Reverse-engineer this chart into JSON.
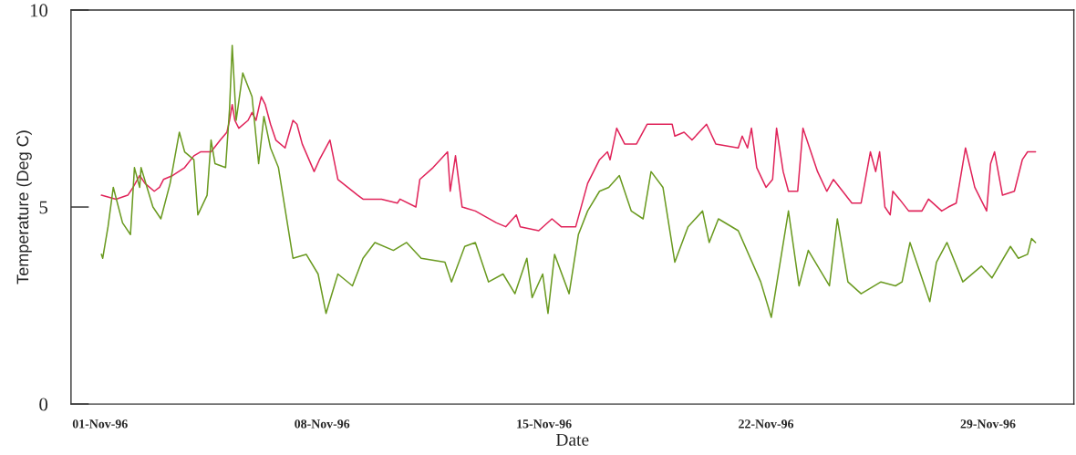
{
  "chart_data": {
    "type": "line",
    "xlabel": "Date",
    "ylabel": "Temperature (Deg C)",
    "xlim": [
      "1996-10-31T02:00",
      "1996-12-01T17:00"
    ],
    "xticks": [
      {
        "value": "1996-11-01",
        "label": "01-Nov-96"
      },
      {
        "value": "1996-11-08",
        "label": "08-Nov-96"
      },
      {
        "value": "1996-11-15",
        "label": "15-Nov-96"
      },
      {
        "value": "1996-11-22",
        "label": "22-Nov-96"
      },
      {
        "value": "1996-11-29",
        "label": "29-Nov-96"
      }
    ],
    "ylim": [
      0,
      10
    ],
    "yticks": [
      0,
      5,
      10
    ],
    "grid": false,
    "marker": "none",
    "line_style": "solid",
    "series": [
      {
        "color": "#e0245a",
        "x": [
          "1996-11-01T01:00",
          "1996-11-01T12:00",
          "1996-11-01T21:00",
          "1996-11-02T01:00",
          "1996-11-02T06:00",
          "1996-11-02T10:00",
          "1996-11-02T17:00",
          "1996-11-02T21:00",
          "1996-11-03T00:00",
          "1996-11-03T07:00",
          "1996-11-03T16:00",
          "1996-11-03T23:00",
          "1996-11-04T04:00",
          "1996-11-04T12:00",
          "1996-11-04T19:00",
          "1996-11-05T00:00",
          "1996-11-05T02:00",
          "1996-11-05T04:00",
          "1996-11-05T06:00",
          "1996-11-05T09:00",
          "1996-11-05T16:00",
          "1996-11-05T19:00",
          "1996-11-05T22:00",
          "1996-11-06T02:00",
          "1996-11-06T05:00",
          "1996-11-06T09:00",
          "1996-11-06T13:00",
          "1996-11-06T20:00",
          "1996-11-07T02:00",
          "1996-11-07T05:00",
          "1996-11-07T09:00",
          "1996-11-07T18:00",
          "1996-11-07T22:00",
          "1996-11-08T06:00",
          "1996-11-08T12:00",
          "1996-11-09T03:00",
          "1996-11-09T07:00",
          "1996-11-09T21:00",
          "1996-11-10T09:00",
          "1996-11-10T11:00",
          "1996-11-10T23:00",
          "1996-11-11T02:00",
          "1996-11-11T12:00",
          "1996-11-11T23:00",
          "1996-11-12T01:00",
          "1996-11-12T05:00",
          "1996-11-12T10:00",
          "1996-11-12T20:00",
          "1996-11-13T12:00",
          "1996-11-13T19:00",
          "1996-11-14T03:00",
          "1996-11-14T06:00",
          "1996-11-14T20:00",
          "1996-11-15T06:00",
          "1996-11-15T13:00",
          "1996-11-16T00:00",
          "1996-11-16T09:00",
          "1996-11-16T18:00",
          "1996-11-17T00:00",
          "1996-11-17T02:00",
          "1996-11-17T07:00",
          "1996-11-17T13:00",
          "1996-11-17T22:00",
          "1996-11-18T06:00",
          "1996-11-19T01:00",
          "1996-11-19T03:00",
          "1996-11-19T10:00",
          "1996-11-19T16:00",
          "1996-11-20T03:00",
          "1996-11-20T10:00",
          "1996-11-21T03:00",
          "1996-11-21T06:00",
          "1996-11-21T10:00",
          "1996-11-21T13:00",
          "1996-11-21T17:00",
          "1996-11-22T00:00",
          "1996-11-22T05:00",
          "1996-11-22T08:00",
          "1996-11-22T13:00",
          "1996-11-22T17:00",
          "1996-11-23T00:00",
          "1996-11-23T04:00",
          "1996-11-23T08:00",
          "1996-11-23T15:00",
          "1996-11-23T22:00",
          "1996-11-24T03:00",
          "1996-11-24T10:00",
          "1996-11-24T17:00",
          "1996-11-25T00:00",
          "1996-11-25T07:00",
          "1996-11-25T11:00",
          "1996-11-25T14:00",
          "1996-11-25T18:00",
          "1996-11-25T22:00",
          "1996-11-26T00:00",
          "1996-11-26T05:00",
          "1996-11-26T12:00",
          "1996-11-26T22:00",
          "1996-11-27T03:00",
          "1996-11-27T13:00",
          "1996-11-27T18:00",
          "1996-11-28T00:00",
          "1996-11-28T07:00",
          "1996-11-28T14:00",
          "1996-11-28T23:00",
          "1996-11-29T02:00",
          "1996-11-29T05:00",
          "1996-11-29T11:00",
          "1996-11-29T20:00",
          "1996-11-30T02:00",
          "1996-11-30T06:00",
          "1996-11-30T12:00"
        ],
        "values": [
          5.3,
          5.2,
          5.3,
          5.5,
          5.8,
          5.6,
          5.4,
          5.5,
          5.7,
          5.8,
          6.0,
          6.3,
          6.4,
          6.4,
          6.7,
          6.9,
          7.2,
          7.6,
          7.2,
          7.0,
          7.2,
          7.4,
          7.2,
          7.8,
          7.6,
          7.1,
          6.7,
          6.5,
          7.2,
          7.1,
          6.6,
          5.9,
          6.2,
          6.7,
          5.7,
          5.3,
          5.2,
          5.2,
          5.1,
          5.2,
          5.0,
          5.7,
          6.0,
          6.4,
          5.4,
          6.3,
          5.0,
          4.9,
          4.6,
          4.5,
          4.8,
          4.5,
          4.4,
          4.7,
          4.5,
          4.5,
          5.6,
          6.2,
          6.4,
          6.2,
          7.0,
          6.6,
          6.6,
          7.1,
          7.1,
          6.8,
          6.9,
          6.7,
          7.1,
          6.6,
          6.5,
          6.8,
          6.5,
          7.0,
          6.0,
          5.5,
          5.7,
          7.0,
          5.9,
          5.4,
          5.4,
          7.0,
          6.6,
          5.9,
          5.4,
          5.7,
          5.4,
          5.1,
          5.1,
          6.4,
          5.9,
          6.4,
          5.0,
          4.8,
          5.4,
          5.2,
          4.9,
          4.9,
          5.2,
          4.9,
          5.0,
          5.1,
          6.5,
          5.5,
          4.9,
          6.1,
          6.4,
          5.3,
          5.4,
          6.2,
          6.4,
          6.4
        ]
      },
      {
        "color": "#6a9a20",
        "x": [
          "1996-11-01T01:00",
          "1996-11-01T02:00",
          "1996-11-01T06:00",
          "1996-11-01T10:00",
          "1996-11-01T17:00",
          "1996-11-01T23:00",
          "1996-11-02T02:00",
          "1996-11-02T06:00",
          "1996-11-02T07:00",
          "1996-11-02T16:00",
          "1996-11-02T22:00",
          "1996-11-03T05:00",
          "1996-11-03T12:00",
          "1996-11-03T16:00",
          "1996-11-03T23:00",
          "1996-11-04T02:00",
          "1996-11-04T09:00",
          "1996-11-04T12:00",
          "1996-11-04T15:00",
          "1996-11-04T23:00",
          "1996-11-05T02:00",
          "1996-11-05T04:00",
          "1996-11-05T07:00",
          "1996-11-05T12:00",
          "1996-11-05T19:00",
          "1996-11-06T00:00",
          "1996-11-06T04:00",
          "1996-11-06T09:00",
          "1996-11-06T15:00",
          "1996-11-07T02:00",
          "1996-11-07T12:00",
          "1996-11-07T21:00",
          "1996-11-08T03:00",
          "1996-11-08T12:00",
          "1996-11-08T23:00",
          "1996-11-09T07:00",
          "1996-11-09T16:00",
          "1996-11-10T06:00",
          "1996-11-10T16:00",
          "1996-11-11T03:00",
          "1996-11-11T21:00",
          "1996-11-12T02:00",
          "1996-11-12T12:00",
          "1996-11-12T20:00",
          "1996-11-13T06:00",
          "1996-11-13T17:00",
          "1996-11-14T02:00",
          "1996-11-14T11:00",
          "1996-11-14T15:00",
          "1996-11-14T23:00",
          "1996-11-15T03:00",
          "1996-11-15T08:00",
          "1996-11-15T19:00",
          "1996-11-16T02:00",
          "1996-11-16T09:00",
          "1996-11-16T18:00",
          "1996-11-17T01:00",
          "1996-11-17T09:00",
          "1996-11-17T18:00",
          "1996-11-18T03:00",
          "1996-11-18T09:00",
          "1996-11-18T18:00",
          "1996-11-19T03:00",
          "1996-11-19T13:00",
          "1996-11-20T00:00",
          "1996-11-20T05:00",
          "1996-11-20T12:00",
          "1996-11-21T03:00",
          "1996-11-21T20:00",
          "1996-11-22T04:00",
          "1996-11-22T17:00",
          "1996-11-23T01:00",
          "1996-11-23T08:00",
          "1996-11-24T00:00",
          "1996-11-24T06:00",
          "1996-11-24T14:00",
          "1996-11-25T00:00",
          "1996-11-25T15:00",
          "1996-11-26T02:00",
          "1996-11-26T07:00",
          "1996-11-26T13:00",
          "1996-11-26T20:00",
          "1996-11-27T04:00",
          "1996-11-27T09:00",
          "1996-11-27T17:00",
          "1996-11-28T05:00",
          "1996-11-28T19:00",
          "1996-11-29T03:00",
          "1996-11-29T17:00",
          "1996-11-29T23:00",
          "1996-11-30T06:00",
          "1996-11-30T09:00",
          "1996-11-30T12:00"
        ],
        "values": [
          3.8,
          3.7,
          4.5,
          5.5,
          4.6,
          4.3,
          6.0,
          5.5,
          6.0,
          5.0,
          4.7,
          5.6,
          6.9,
          6.4,
          6.2,
          4.8,
          5.3,
          6.7,
          6.1,
          6.0,
          7.5,
          9.1,
          7.2,
          8.4,
          7.8,
          6.1,
          7.3,
          6.5,
          6.0,
          3.7,
          3.8,
          3.3,
          2.3,
          3.3,
          3.0,
          3.7,
          4.1,
          3.9,
          4.1,
          3.7,
          3.6,
          3.1,
          4.0,
          4.1,
          3.1,
          3.3,
          2.8,
          3.7,
          2.7,
          3.3,
          2.3,
          3.8,
          2.8,
          4.3,
          4.9,
          5.4,
          5.5,
          5.8,
          4.9,
          4.7,
          5.9,
          5.5,
          3.6,
          4.5,
          4.9,
          4.1,
          4.7,
          4.4,
          3.1,
          2.2,
          4.9,
          3.0,
          3.9,
          3.0,
          4.7,
          3.1,
          2.8,
          3.1,
          3.0,
          3.1,
          4.1,
          3.4,
          2.6,
          3.6,
          4.1,
          3.1,
          3.5,
          3.2,
          4.0,
          3.7,
          3.8,
          4.2,
          4.1
        ]
      }
    ]
  }
}
